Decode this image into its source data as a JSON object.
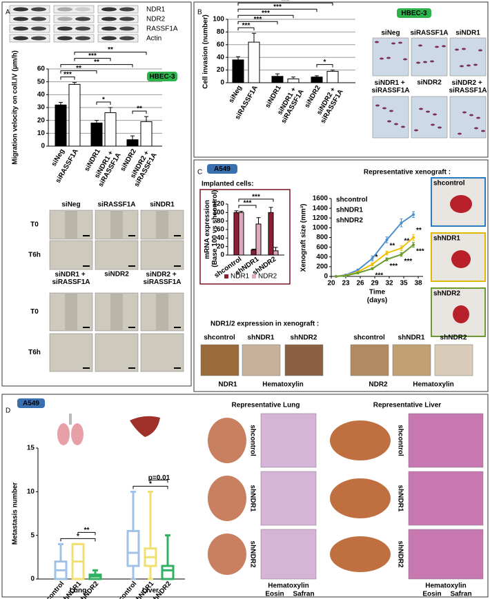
{
  "figure": {
    "panel_labels": [
      "A",
      "B",
      "C",
      "D"
    ],
    "A": {
      "blot_labels": [
        "NDR1",
        "NDR2",
        "RASSF1A",
        "Actin"
      ],
      "micrograph_columns": [
        "siNeg",
        "siRASSF1A",
        "siNDR1",
        "siNDR1 + siRASSF1A",
        "siNDR2",
        "siNDR2 + siRASSF1A"
      ],
      "micrograph_rows": [
        "T0",
        "T6h",
        "T0",
        "T6h"
      ]
    },
    "B": {
      "image_labels": [
        "siNeg",
        "siRASSF1A",
        "siNDR1",
        "siNDR1 + siRASSF1A",
        "siNDR2",
        "siNDR2 + siRASSF1A"
      ]
    },
    "C": {
      "badge": "A549",
      "xenograft_title": "Representative xenograft :",
      "xenograft_labels": [
        "shcontrol",
        "shNDR1",
        "shNDR2"
      ],
      "expression_title": "NDR1/2 expression in xenograft :",
      "ihc_labels": [
        "shcontrol",
        "shNDR1",
        "shNDR2",
        "shcontrol",
        "shNDR1",
        "shNDR2"
      ],
      "ihc_stains": [
        "NDR1",
        "Hematoxylin",
        "NDR2",
        "Hematoxylin"
      ]
    },
    "D": {
      "badge": "A549",
      "lung_title": "Representative Lung",
      "liver_title": "Representative Liver",
      "lung_rows": [
        "shcontrol",
        "shNDR1",
        "shNDR2"
      ],
      "liver_rows": [
        "shcontrol",
        "shNDR1",
        "shNDR2"
      ],
      "stains": [
        "Hematoxylin",
        "Eosin",
        "Safran"
      ]
    }
  },
  "chart_data": [
    {
      "type": "bar",
      "ylabel": "Migration velocity on coll.IV (μm/h)",
      "badge": "HBEC-3",
      "categories": [
        "siNeg",
        "siRASSF1A",
        "siNDR1",
        "siNDR1 + siRASSF1A",
        "siNDR2",
        "siNDR2 + siRASSF1A"
      ],
      "values": [
        32,
        48,
        18,
        26,
        5,
        19
      ],
      "errors": [
        2,
        1.5,
        2,
        4,
        3,
        4
      ],
      "colors": [
        "#000000",
        "#ffffff",
        "#000000",
        "#ffffff",
        "#000000",
        "#ffffff"
      ],
      "ylim": [
        0,
        60
      ],
      "yticks": [
        0,
        10,
        20,
        30,
        40,
        50,
        60
      ],
      "grid": true,
      "brackets": [
        {
          "label": "*",
          "between": [
            2,
            3
          ]
        },
        {
          "label": "**",
          "between": [
            4,
            5
          ]
        },
        {
          "label": "***",
          "between": [
            0,
            1
          ]
        },
        {
          "label": "**",
          "between": [
            0,
            2
          ]
        },
        {
          "label": "**",
          "between": [
            0,
            4
          ]
        },
        {
          "label": "***",
          "between": [
            1,
            3
          ]
        },
        {
          "label": "**",
          "between": [
            1,
            5
          ]
        }
      ]
    },
    {
      "type": "bar",
      "ylabel": "Cell invasion (number)",
      "badge": "HBEC-3",
      "categories": [
        "siNeg",
        "siRASSF1A",
        "siNDR1",
        "siNDR1 + siRASSF1A",
        "siNDR2",
        "siNDR2 + siRASSF1A"
      ],
      "values": [
        36,
        64,
        10,
        6,
        9,
        18
      ],
      "errors": [
        5,
        14,
        4,
        3,
        2,
        2
      ],
      "colors": [
        "#000000",
        "#ffffff",
        "#000000",
        "#ffffff",
        "#000000",
        "#ffffff"
      ],
      "ylim": [
        0,
        100
      ],
      "yticks": [
        0,
        20,
        40,
        60,
        80,
        100
      ],
      "grid": true,
      "brackets": [
        {
          "label": "*",
          "between": [
            4,
            5
          ]
        },
        {
          "label": "***",
          "between": [
            0,
            1
          ]
        },
        {
          "label": "***",
          "between": [
            0,
            2
          ]
        },
        {
          "label": "***",
          "between": [
            0,
            3
          ]
        },
        {
          "label": "***",
          "between": [
            0,
            4
          ]
        },
        {
          "label": "***",
          "between": [
            0,
            5
          ]
        }
      ]
    },
    {
      "type": "bar",
      "title": "Implanted cells:",
      "ylabel": "mRNA expression (Base 100 vs shcontrol)",
      "categories": [
        "shcontrol",
        "shNDR1",
        "shNDR2"
      ],
      "series": [
        {
          "name": "NDR1",
          "color": "#8b2035",
          "values": [
            100,
            12,
            100
          ],
          "errors": [
            4,
            2,
            12
          ]
        },
        {
          "name": "NDR2",
          "color": "#e0a8bc",
          "values": [
            100,
            73,
            10
          ],
          "errors": [
            3,
            15,
            8
          ]
        }
      ],
      "ylim": [
        0,
        120
      ],
      "yticks": [
        0,
        20,
        40,
        60,
        80,
        100,
        120
      ],
      "grid": false,
      "brackets": [
        {
          "label": "***",
          "between": [
            0,
            1
          ]
        },
        {
          "label": "***",
          "between": [
            0,
            2
          ]
        }
      ]
    },
    {
      "type": "line",
      "xlabel": [
        "Time",
        "(days)"
      ],
      "ylabel": "Xenograft size (mm³)",
      "x": [
        21,
        23,
        25.5,
        28.5,
        31.5,
        34.5,
        37
      ],
      "series": [
        {
          "name": "shcontrol",
          "color": "#4a90d0",
          "values": [
            0,
            30,
            130,
            370,
            750,
            1100,
            1270
          ],
          "errors": [
            0,
            10,
            20,
            50,
            60,
            80,
            60
          ]
        },
        {
          "name": "shNDR1",
          "color": "#f0c000",
          "values": [
            0,
            20,
            90,
            250,
            480,
            580,
            800
          ],
          "errors": [
            0,
            10,
            15,
            30,
            40,
            50,
            60
          ],
          "annotations": [
            {
              "index": 3,
              "label": "*"
            },
            {
              "index": 4,
              "label": "**"
            },
            {
              "index": 5,
              "label": "**"
            },
            {
              "index": 6,
              "label": "**"
            }
          ]
        },
        {
          "name": "shNDR2",
          "color": "#6a9a30",
          "values": [
            0,
            15,
            70,
            160,
            350,
            450,
            650
          ],
          "errors": [
            0,
            10,
            15,
            20,
            30,
            40,
            50
          ],
          "annotations": [
            {
              "index": 3,
              "label": "***"
            },
            {
              "index": 4,
              "label": "***"
            },
            {
              "index": 5,
              "label": "***"
            },
            {
              "index": 6,
              "label": "***"
            }
          ]
        }
      ],
      "xlim": [
        20,
        39
      ],
      "xticks": [
        20,
        23,
        26,
        29,
        32,
        35,
        38
      ],
      "ylim": [
        0,
        1600
      ],
      "yticks": [
        0,
        200,
        400,
        600,
        800,
        1000,
        1200,
        1400,
        1600
      ],
      "grid": false
    },
    {
      "type": "boxplot",
      "ylabel": "Metastasis number",
      "groups": [
        "Lung",
        "Liver"
      ],
      "categories": [
        "shcontrol",
        "shNDR1",
        "shNDR2",
        "shcontrol",
        "shNDR1",
        "shNDR2"
      ],
      "colors": [
        "#9fc3e7",
        "#f0e070",
        "#30b060",
        "#9fc3e7",
        "#f0e070",
        "#30b060"
      ],
      "min": [
        0,
        0,
        0,
        0,
        0,
        0
      ],
      "q1": [
        0,
        0,
        0,
        1.5,
        1.5,
        0
      ],
      "median": [
        1,
        2,
        0.3,
        3,
        2.5,
        1
      ],
      "q3": [
        2,
        4,
        0.5,
        5.5,
        3.5,
        1.5
      ],
      "max": [
        4,
        4,
        1,
        10,
        10,
        5
      ],
      "ylim": [
        0,
        15
      ],
      "yticks": [
        0,
        5,
        10,
        15
      ],
      "grid": false,
      "brackets": [
        {
          "label": "*",
          "between": [
            0,
            2
          ]
        },
        {
          "label": "**",
          "between": [
            1,
            2
          ]
        },
        {
          "label": "*",
          "between": [
            3,
            5
          ]
        },
        {
          "label": "p=0.01",
          "between": [
            4,
            5
          ]
        }
      ]
    }
  ]
}
